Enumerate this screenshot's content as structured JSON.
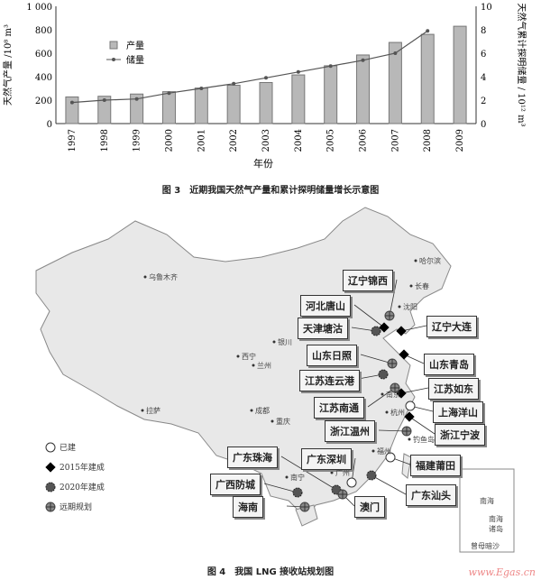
{
  "figure3": {
    "caption": "图 3　近期我国天然气产量和累计探明储量增长示意图",
    "chart_data": {
      "type": "bar+line",
      "title": "",
      "categories": [
        "1997",
        "1998",
        "1999",
        "2000",
        "2001",
        "2002",
        "2003",
        "2004",
        "2005",
        "2006",
        "2007",
        "2008",
        "2009"
      ],
      "series": [
        {
          "name": "产量",
          "type": "bar",
          "axis": "left",
          "values": [
            227,
            233,
            252,
            272,
            303,
            327,
            350,
            415,
            493,
            585,
            692,
            761,
            830
          ]
        },
        {
          "name": "储量",
          "type": "line",
          "axis": "right",
          "values": [
            1.8,
            2.0,
            2.1,
            2.6,
            3.0,
            3.4,
            3.9,
            4.4,
            4.9,
            5.4,
            6.0,
            7.9,
            null
          ]
        }
      ],
      "xlabel": "年份",
      "ylabel": "天然气产量 /10⁸ m³",
      "y2label": "天然气累计探明储量 / 10¹² m³",
      "ylim": [
        0,
        1000
      ],
      "y2lim": [
        0,
        10
      ],
      "yticks": [
        "0",
        "200",
        "400",
        "600",
        "800",
        "1 000"
      ],
      "y2ticks": [
        "0",
        "2",
        "4",
        "6",
        "8",
        "10"
      ],
      "legend": "top-left",
      "colors": {
        "bar": "#b8b8b8",
        "line": "#555555"
      }
    }
  },
  "figure4": {
    "caption": "图 4　我国 LNG 接收站规划图",
    "legend": [
      {
        "type": "built",
        "label": "已建"
      },
      {
        "type": "2015",
        "label": "2015年建成"
      },
      {
        "type": "2020",
        "label": "2020年建成"
      },
      {
        "type": "plan",
        "label": "远期规划"
      }
    ],
    "stations": [
      {
        "name": "辽宁锦西",
        "type": "plan"
      },
      {
        "name": "河北唐山",
        "type": "2015"
      },
      {
        "name": "天津塘沽",
        "type": "2020"
      },
      {
        "name": "辽宁大连",
        "type": "2015"
      },
      {
        "name": "山东日照",
        "type": "plan"
      },
      {
        "name": "山东青岛",
        "type": "2015"
      },
      {
        "name": "江苏连云港",
        "type": "2020"
      },
      {
        "name": "江苏如东",
        "type": "2015"
      },
      {
        "name": "江苏南通",
        "type": "plan"
      },
      {
        "name": "上海洋山",
        "type": "built"
      },
      {
        "name": "浙江温州",
        "type": "plan"
      },
      {
        "name": "浙江宁波",
        "type": "2015"
      },
      {
        "name": "广东珠海",
        "type": "2020"
      },
      {
        "name": "广东深圳",
        "type": "built"
      },
      {
        "name": "福建莆田",
        "type": "built"
      },
      {
        "name": "广西防城",
        "type": "2020"
      },
      {
        "name": "广东汕头",
        "type": "2020"
      },
      {
        "name": "海南",
        "type": "plan"
      },
      {
        "name": "澳门",
        "type": "plan"
      }
    ],
    "cities": [
      "哈尔滨",
      "长春",
      "沈阳",
      "乌鲁木齐",
      "银川",
      "西宁",
      "兰州",
      "拉萨",
      "成都",
      "重庆",
      "南宁",
      "广州",
      "福州",
      "杭州",
      "南京",
      "钓鱼岛"
    ],
    "inset": [
      "南海",
      "南海诸岛",
      "曾母暗沙"
    ]
  },
  "watermark": "www.Egas.cn"
}
